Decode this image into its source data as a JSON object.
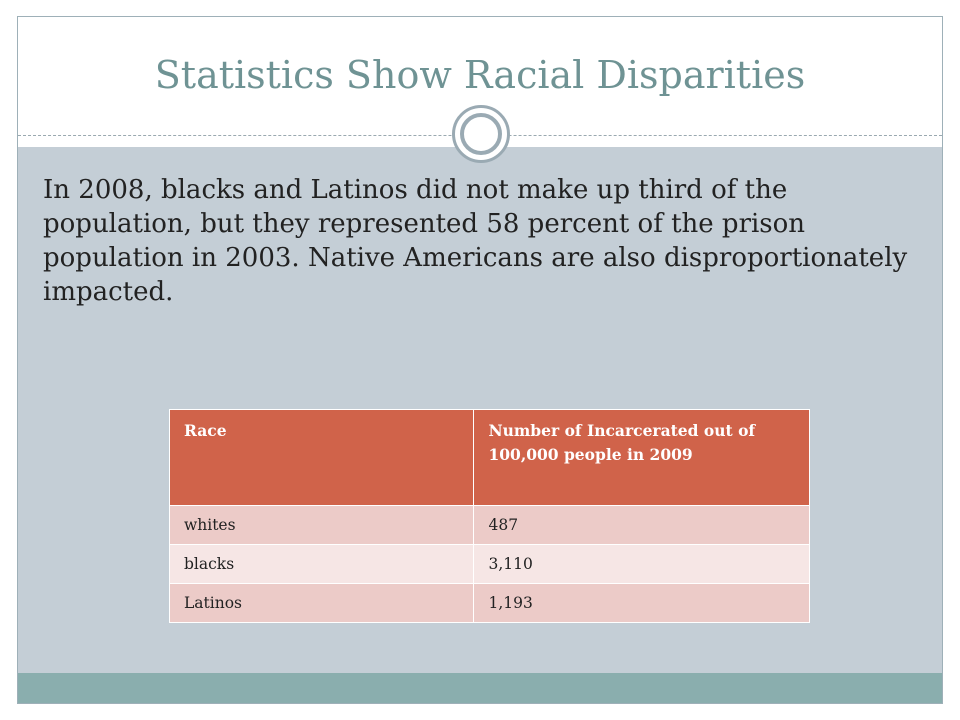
{
  "slide": {
    "title": "Statistics Show Racial Disparities",
    "body": "In 2008, blacks and Latinos did not make up third of the population, but they represented 58 percent of the prison population in 2003. Native Americans are also disproportionately impacted."
  },
  "table": {
    "headers": [
      "Race",
      "Number of Incarcerated out of 100,000 people in 2009"
    ],
    "rows": [
      [
        "whites",
        "487"
      ],
      [
        "blacks",
        "3,110"
      ],
      [
        "Latinos",
        "1,193"
      ]
    ]
  },
  "colors": {
    "title": "#6f9394",
    "content_background": "#c4ced6",
    "bottom_band": "#8aaeae",
    "table_header": "#d0634a",
    "table_row_odd": "#eccbc8",
    "table_row_even": "#f6e6e5"
  }
}
